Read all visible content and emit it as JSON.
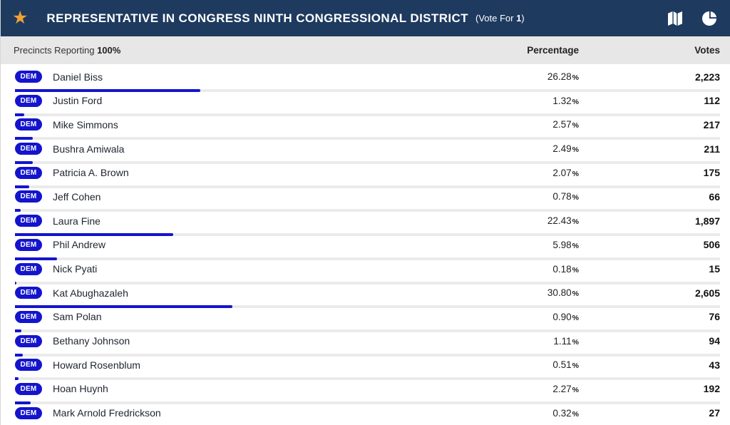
{
  "header": {
    "title": "REPRESENTATIVE IN CONGRESS NINTH CONGRESSIONAL DISTRICT",
    "vote_for_prefix": "(Vote For ",
    "vote_for_number": "1",
    "vote_for_suffix": ")",
    "icons": [
      "favorite-star-icon",
      "map-icon",
      "pie-chart-icon"
    ]
  },
  "subheader": {
    "precincts_label": "Precincts Reporting ",
    "precincts_value": "100%",
    "col_percentage": "Percentage",
    "col_votes": "Votes"
  },
  "colors": {
    "header_navy": "#1e3a5f",
    "star_gold": "#f2a232",
    "accent_blue": "#1414cd",
    "track_gray": "#ebebeb",
    "subheader_gray": "#e7e7e7"
  },
  "chart_data": {
    "type": "bar",
    "title": "REPRESENTATIVE IN CONGRESS NINTH CONGRESSIONAL DISTRICT",
    "categories": [
      "Daniel Biss",
      "Justin Ford",
      "Mike Simmons",
      "Bushra Amiwala",
      "Patricia A. Brown",
      "Jeff Cohen",
      "Laura Fine",
      "Phil Andrew",
      "Nick Pyati",
      "Kat Abughazaleh",
      "Sam Polan",
      "Bethany Johnson",
      "Howard Rosenblum",
      "Hoan Huynh",
      "Mark Arnold Fredrickson"
    ],
    "series": [
      {
        "name": "Percentage",
        "values": [
          26.28,
          1.32,
          2.57,
          2.49,
          2.07,
          0.78,
          22.43,
          5.98,
          0.18,
          30.8,
          0.9,
          1.11,
          0.51,
          2.27,
          0.32
        ]
      },
      {
        "name": "Votes",
        "values": [
          2223,
          112,
          217,
          211,
          175,
          66,
          1897,
          506,
          15,
          2605,
          76,
          94,
          43,
          192,
          27
        ]
      }
    ],
    "xlabel": "",
    "ylabel": "Percentage",
    "ylim": [
      0,
      100
    ]
  },
  "candidates": [
    {
      "party": "DEM",
      "name": "Daniel Biss",
      "percentage": "26.28",
      "pct": 26.28,
      "votes": "2,223"
    },
    {
      "party": "DEM",
      "name": "Justin Ford",
      "percentage": "1.32",
      "pct": 1.32,
      "votes": "112"
    },
    {
      "party": "DEM",
      "name": "Mike Simmons",
      "percentage": "2.57",
      "pct": 2.57,
      "votes": "217"
    },
    {
      "party": "DEM",
      "name": "Bushra Amiwala",
      "percentage": "2.49",
      "pct": 2.49,
      "votes": "211"
    },
    {
      "party": "DEM",
      "name": "Patricia A. Brown",
      "percentage": "2.07",
      "pct": 2.07,
      "votes": "175"
    },
    {
      "party": "DEM",
      "name": "Jeff Cohen",
      "percentage": "0.78",
      "pct": 0.78,
      "votes": "66"
    },
    {
      "party": "DEM",
      "name": "Laura Fine",
      "percentage": "22.43",
      "pct": 22.43,
      "votes": "1,897"
    },
    {
      "party": "DEM",
      "name": "Phil Andrew",
      "percentage": "5.98",
      "pct": 5.98,
      "votes": "506"
    },
    {
      "party": "DEM",
      "name": "Nick Pyati",
      "percentage": "0.18",
      "pct": 0.18,
      "votes": "15"
    },
    {
      "party": "DEM",
      "name": "Kat Abughazaleh",
      "percentage": "30.80",
      "pct": 30.8,
      "votes": "2,605"
    },
    {
      "party": "DEM",
      "name": "Sam Polan",
      "percentage": "0.90",
      "pct": 0.9,
      "votes": "76"
    },
    {
      "party": "DEM",
      "name": "Bethany Johnson",
      "percentage": "1.11",
      "pct": 1.11,
      "votes": "94"
    },
    {
      "party": "DEM",
      "name": "Howard Rosenblum",
      "percentage": "0.51",
      "pct": 0.51,
      "votes": "43"
    },
    {
      "party": "DEM",
      "name": "Hoan Huynh",
      "percentage": "2.27",
      "pct": 2.27,
      "votes": "192"
    },
    {
      "party": "DEM",
      "name": "Mark Arnold Fredrickson",
      "percentage": "0.32",
      "pct": 0.32,
      "votes": "27"
    }
  ]
}
